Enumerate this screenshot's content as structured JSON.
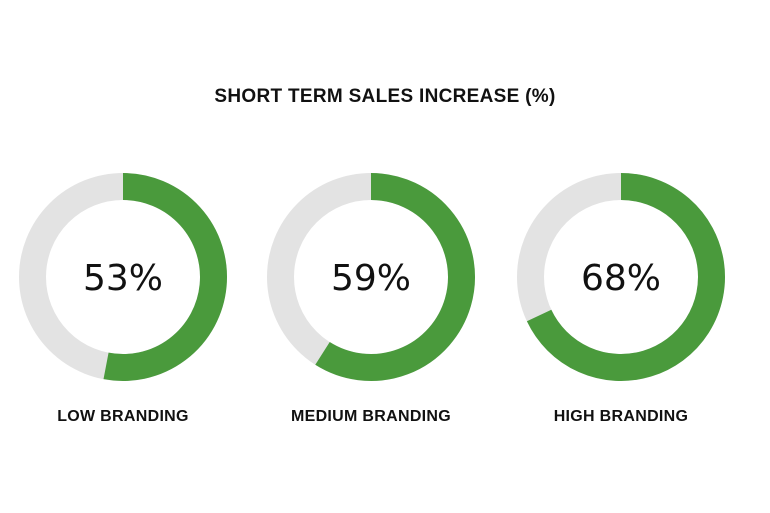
{
  "chart_data": {
    "type": "pie",
    "variant": "donut",
    "title": "SHORT TERM SALES INCREASE (%)",
    "max": 100,
    "items": [
      {
        "label": "LOW BRANDING",
        "value": 53,
        "display": "53%"
      },
      {
        "label": "MEDIUM BRANDING",
        "value": 59,
        "display": "59%"
      },
      {
        "label": "HIGH BRANDING",
        "value": 68,
        "display": "68%"
      }
    ],
    "colors": {
      "filled": "#4a9a3c",
      "track": "#e3e3e3"
    }
  }
}
